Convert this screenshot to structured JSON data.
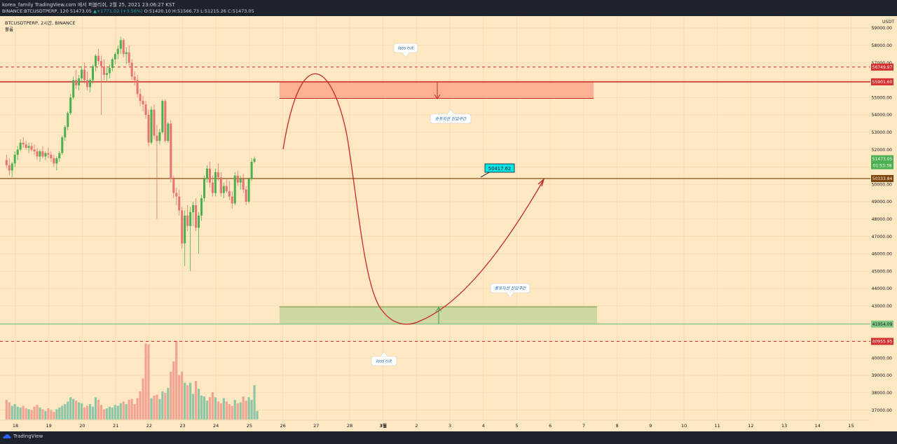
{
  "header": {
    "line1": "korea_family TradingView.com 에서 퍼블리쉬, 2월 25, 2021 23:06:27 KST",
    "line2_prefix": "BINANCE:BTCUSDTPERP, 120 51473.05",
    "line2_change": "▲+1771.02 (+3.56%)",
    "line2_ohlc": "O:51420.10 H:51566.73 L:51215.26 C:51473.05"
  },
  "legend": {
    "symbol": "BTCUSDTPERP, 2시간, BINANCE",
    "volume": "볼륨"
  },
  "footer": {
    "brand": "TradingView"
  },
  "colors": {
    "background": "#ffe8c2",
    "up": "#4caf50",
    "down": "#e57373",
    "resistance": "#d32f2f",
    "support": "#81c784",
    "pivot": "#7b3f00",
    "accent": "#00e5e5"
  },
  "chart_data": {
    "type": "candlestick",
    "currency": "USDT",
    "ylim": [
      36500,
      59700
    ],
    "y_ticks": [
      "59000.00",
      "58000.00",
      "57000.00",
      "56000.00",
      "55000.00",
      "54000.00",
      "53000.00",
      "52000.00",
      "51000.00",
      "50000.00",
      "49000.00",
      "48000.00",
      "47000.00",
      "46000.00",
      "45000.00",
      "44000.00",
      "43000.00",
      "42000.00",
      "41000.00",
      "40000.00",
      "39000.00",
      "38000.00",
      "37000.00"
    ],
    "x_ticks": [
      "18",
      "19",
      "20",
      "21",
      "22",
      "23",
      "24",
      "25",
      "26",
      "27",
      "28",
      "3월",
      "2",
      "3",
      "4",
      "5",
      "6",
      "7",
      "8",
      "9",
      "10",
      "11",
      "12",
      "13",
      "14",
      "15"
    ],
    "price_labels": [
      {
        "value": 56749.97,
        "text": "56749.97"
      },
      {
        "value": 55901.6,
        "text": "55901.60"
      },
      {
        "value": 51473.05,
        "text": "51473.05"
      },
      {
        "value": 50333.84,
        "text": "50333.84"
      },
      {
        "value": 41954.09,
        "text": "41954.09"
      },
      {
        "value": 40955.95,
        "text": "40955.95"
      }
    ],
    "countdown": "01:53:38",
    "levels": {
      "stop_upper": 56749.97,
      "resistance": 55901.6,
      "pivot": 50333.84,
      "support": 41954.09,
      "stop_lower": 40955.95
    },
    "zones": {
      "short_entry": {
        "top": 55901.6,
        "bottom": 54950,
        "from_day": 25.9,
        "to_day": 35.3
      },
      "long_entry": {
        "top": 42950,
        "bottom": 41954.09,
        "from_day": 25.9,
        "to_day": 35.4
      }
    },
    "annotations": {
      "loss_cut_top": "loss cut",
      "short_zone": "숏포지션 진입구간",
      "long_zone": "롱포지션 진입구간",
      "loss_cut_bottom": "loss cut",
      "price_note": "50417.62"
    },
    "candles": [
      [
        51400,
        51700,
        50900,
        51100
      ],
      [
        51100,
        51500,
        50500,
        50800
      ],
      [
        50800,
        51300,
        50400,
        51200
      ],
      [
        51200,
        51900,
        51000,
        51700
      ],
      [
        51700,
        52200,
        51400,
        52000
      ],
      [
        52000,
        52600,
        51900,
        52400
      ],
      [
        52400,
        52700,
        52100,
        52300
      ],
      [
        52300,
        52500,
        52000,
        52100
      ],
      [
        52100,
        52400,
        51800,
        52200
      ],
      [
        52200,
        52400,
        51900,
        52000
      ],
      [
        52000,
        52300,
        51700,
        51900
      ],
      [
        51900,
        52100,
        51400,
        51600
      ],
      [
        51600,
        52000,
        51300,
        51900
      ],
      [
        51900,
        52200,
        51500,
        51600
      ],
      [
        51600,
        51900,
        51400,
        51800
      ],
      [
        51800,
        52100,
        51500,
        51700
      ],
      [
        51700,
        51900,
        51300,
        51500
      ],
      [
        51500,
        51700,
        51000,
        51200
      ],
      [
        51200,
        51600,
        50800,
        51500
      ],
      [
        51500,
        51900,
        51300,
        51800
      ],
      [
        51800,
        52800,
        51700,
        52700
      ],
      [
        52700,
        53400,
        52500,
        53300
      ],
      [
        53300,
        54200,
        53100,
        54100
      ],
      [
        54100,
        55200,
        54000,
        55000
      ],
      [
        55000,
        56200,
        54900,
        56000
      ],
      [
        56000,
        56600,
        55500,
        55700
      ],
      [
        55700,
        56300,
        55400,
        56100
      ],
      [
        56100,
        56800,
        55900,
        56600
      ],
      [
        56600,
        57000,
        55800,
        56000
      ],
      [
        56000,
        56500,
        55400,
        55600
      ],
      [
        55600,
        56100,
        55300,
        56000
      ],
      [
        56000,
        56900,
        55800,
        56800
      ],
      [
        56800,
        57500,
        56500,
        57400
      ],
      [
        57400,
        57800,
        56900,
        57100
      ],
      [
        57100,
        57400,
        54000,
        56800
      ],
      [
        56800,
        57200,
        56000,
        56300
      ],
      [
        56300,
        56700,
        55900,
        56400
      ],
      [
        56400,
        56900,
        56100,
        56700
      ],
      [
        56700,
        57300,
        56500,
        57200
      ],
      [
        57200,
        57600,
        56900,
        57500
      ],
      [
        57500,
        58000,
        57200,
        57800
      ],
      [
        57800,
        58500,
        57500,
        58300
      ],
      [
        58300,
        58400,
        57300,
        57500
      ],
      [
        57500,
        57900,
        56900,
        57600
      ],
      [
        57600,
        58000,
        56800,
        57000
      ],
      [
        57000,
        57200,
        56000,
        56200
      ],
      [
        56200,
        56500,
        55700,
        56000
      ],
      [
        56000,
        56300,
        55000,
        55200
      ],
      [
        55200,
        55500,
        54500,
        54800
      ],
      [
        54800,
        55100,
        54200,
        54600
      ],
      [
        54600,
        54800,
        53800,
        54000
      ],
      [
        54000,
        54300,
        52200,
        52400
      ],
      [
        52400,
        54500,
        52300,
        54300
      ],
      [
        54300,
        54600,
        52600,
        52800
      ],
      [
        52800,
        53400,
        48000,
        52500
      ],
      [
        52500,
        53200,
        52300,
        53000
      ],
      [
        53000,
        54900,
        52900,
        54800
      ],
      [
        54800,
        54900,
        52400,
        52500
      ],
      [
        52500,
        53600,
        52400,
        53500
      ],
      [
        53500,
        53700,
        50100,
        50300
      ],
      [
        50300,
        50500,
        49200,
        49500
      ],
      [
        49500,
        49800,
        48800,
        49300
      ],
      [
        49300,
        49700,
        48200,
        48500
      ],
      [
        48500,
        48700,
        46300,
        46600
      ],
      [
        46600,
        48500,
        45300,
        48200
      ],
      [
        48200,
        48800,
        47300,
        47600
      ],
      [
        47600,
        48700,
        45000,
        48400
      ],
      [
        48400,
        49000,
        47600,
        48800
      ],
      [
        48800,
        49200,
        47300,
        47500
      ],
      [
        47500,
        48400,
        46000,
        48200
      ],
      [
        48200,
        49400,
        47900,
        49200
      ],
      [
        49200,
        50500,
        49000,
        50300
      ],
      [
        50300,
        51100,
        50100,
        50900
      ],
      [
        50900,
        51300,
        49800,
        50100
      ],
      [
        50100,
        50500,
        49300,
        49500
      ],
      [
        49500,
        50900,
        49300,
        50700
      ],
      [
        50700,
        51200,
        50200,
        50400
      ],
      [
        50400,
        50700,
        49300,
        49500
      ],
      [
        49500,
        50100,
        49200,
        49900
      ],
      [
        49900,
        50300,
        49500,
        49600
      ],
      [
        49600,
        50200,
        49100,
        49300
      ],
      [
        49300,
        49600,
        48600,
        48900
      ],
      [
        48900,
        50700,
        48800,
        50500
      ],
      [
        50500,
        50800,
        49900,
        50100
      ],
      [
        50100,
        50500,
        49700,
        50300
      ],
      [
        50300,
        50600,
        49500,
        49700
      ],
      [
        49700,
        49900,
        48800,
        49000
      ],
      [
        49000,
        50400,
        48900,
        50300
      ],
      [
        50300,
        51500,
        50200,
        51300
      ],
      [
        51300,
        51600,
        51200,
        51473
      ]
    ],
    "volumes": [
      2300,
      2000,
      1600,
      1800,
      1500,
      1400,
      1600,
      1300,
      1200,
      1100,
      1500,
      1700,
      1400,
      1200,
      1000,
      1300,
      1100,
      900,
      1200,
      1400,
      1600,
      1800,
      2100,
      2600,
      2400,
      2200,
      2000,
      1900,
      1400,
      1600,
      1800,
      1500,
      2600,
      2300,
      1700,
      1200,
      1300,
      1500,
      1400,
      1700,
      1600,
      1900,
      2100,
      1800,
      2300,
      2400,
      1800,
      2500,
      3300,
      4800,
      8900,
      8800,
      2500,
      2800,
      2900,
      2400,
      3300,
      3100,
      3700,
      5600,
      6800,
      9200,
      5200,
      5600,
      4300,
      4000,
      4300,
      3000,
      4500,
      3600,
      2800,
      2700,
      2200,
      2600,
      3200,
      2600,
      2100,
      1900,
      2500,
      2100,
      1800,
      1600,
      2300,
      1900,
      2000,
      2700,
      2200,
      2600,
      2300,
      4000,
      1000
    ],
    "volume_ylim": [
      0,
      10000
    ]
  }
}
